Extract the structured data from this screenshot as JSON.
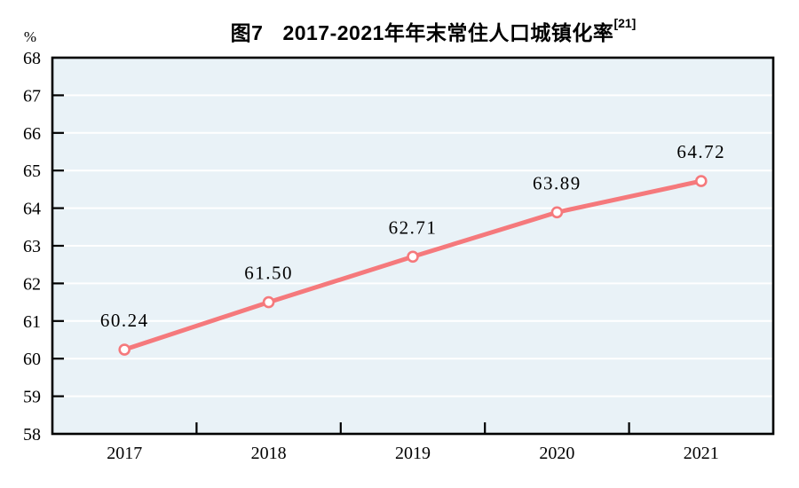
{
  "header": {
    "title_prefix": "图7",
    "title_main": "2017-2021年年末常住人口城镇化率",
    "title_superscript": "[21]"
  },
  "chart_data": {
    "type": "line",
    "title": "图7　2017-2021年年末常住人口城镇化率[21]",
    "unit_label": "%",
    "categories": [
      "2017",
      "2018",
      "2019",
      "2020",
      "2021"
    ],
    "values": [
      60.24,
      61.5,
      62.71,
      63.89,
      64.72
    ],
    "point_labels": [
      "60.24",
      "61.50",
      "62.71",
      "63.89",
      "64.72"
    ],
    "ylim": [
      58,
      68
    ],
    "ytick_step": 1,
    "yticks": [
      58,
      59,
      60,
      61,
      62,
      63,
      64,
      65,
      66,
      67,
      68
    ],
    "xlabel": "",
    "ylabel": "%",
    "grid": "horizontal",
    "legend": "none",
    "colors": {
      "line": "#f5797c",
      "marker_fill": "#ffffff",
      "marker_stroke": "#f5797c",
      "plot_background": "#e9f2f7",
      "gridline": "#ffffff",
      "axis": "#000000",
      "text": "#000000"
    }
  }
}
